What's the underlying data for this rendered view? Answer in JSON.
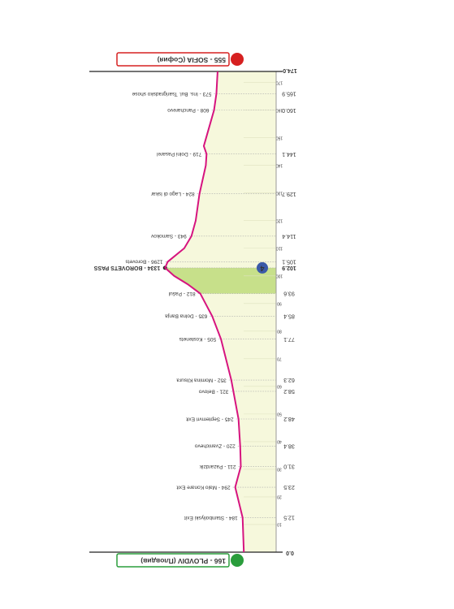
{
  "chart_data": {
    "type": "line",
    "start": {
      "km": {
        "value": 0,
        "label": "0.0"
      },
      "label": "166 - PLOVDIV (Пловдив)"
    },
    "finish": {
      "km": {
        "value": 174,
        "label": "174.0"
      },
      "label": "555 - SOFIA (София)"
    },
    "waypoints": [
      {
        "km": 12.5,
        "label": "184 - Stamboliyski Exit",
        "alt": 184
      },
      {
        "km": 23.5,
        "label": "294 - Malo Konare Exit",
        "alt": 294
      },
      {
        "km": {
          "value": 31,
          "label": "31.0"
        },
        "label": "211 - Pazardzik",
        "alt": 211
      },
      {
        "km": 38.4,
        "label": "220 - Zvanichevo",
        "alt": 220
      },
      {
        "km": 48.2,
        "label": "245 - Septemvri Exit",
        "alt": 245
      },
      {
        "km": 58.2,
        "label": "321 - Belovo",
        "alt": 321
      },
      {
        "km": 62.3,
        "label": "352 - Momina Klisura",
        "alt": 352
      },
      {
        "km": 77.1,
        "label": "505 - Kostenets",
        "alt": 505
      },
      {
        "km": 85.4,
        "label": "635 - Dolna Banja",
        "alt": 635
      },
      {
        "km": 93.6,
        "label": "812 - Pašul",
        "alt": 812
      },
      {
        "km": 102.9,
        "label": "1334 - BOROVETS PASS",
        "alt": 1334,
        "summit": true
      },
      {
        "km": 105.1,
        "label": "1296 - Borovets",
        "alt": 1296
      },
      {
        "km": 114.4,
        "label": "943 - Samokov",
        "alt": 943
      },
      {
        "km": 129.7,
        "label": "824 - Lago di Iskar",
        "alt": 824
      },
      {
        "km": 144.1,
        "label": "719 - Dolni Pasarel",
        "alt": 719
      },
      {
        "km": {
          "value": 160,
          "label": "160.0"
        },
        "label": "608 - Pancharevo",
        "alt": 608
      },
      {
        "km": 165.9,
        "label": "573 - Ins. Bul. Tsarigradsko shose",
        "alt": 573
      }
    ],
    "climb": {
      "from": 93.6,
      "to": 102.9,
      "category": "4"
    },
    "profile": {
      "color": "#d6147f",
      "x": [
        0,
        12.5,
        23.5,
        31,
        38.4,
        48.2,
        58.2,
        62.3,
        77.1,
        85.4,
        93.6,
        97,
        100,
        102.9,
        105.1,
        110,
        114.4,
        120,
        129.7,
        140,
        144.1,
        147,
        160,
        165.9,
        174
      ],
      "values": [
        166,
        184,
        294,
        211,
        220,
        245,
        321,
        352,
        505,
        635,
        812,
        1000,
        1200,
        1334,
        1296,
        1050,
        943,
        880,
        824,
        730,
        719,
        760,
        608,
        573,
        555
      ]
    },
    "xlim": [
      0,
      174
    ],
    "xticks": [
      10,
      20,
      30,
      40,
      50,
      60,
      70,
      80,
      90,
      100,
      110,
      120,
      130,
      140,
      150,
      160,
      170
    ]
  }
}
